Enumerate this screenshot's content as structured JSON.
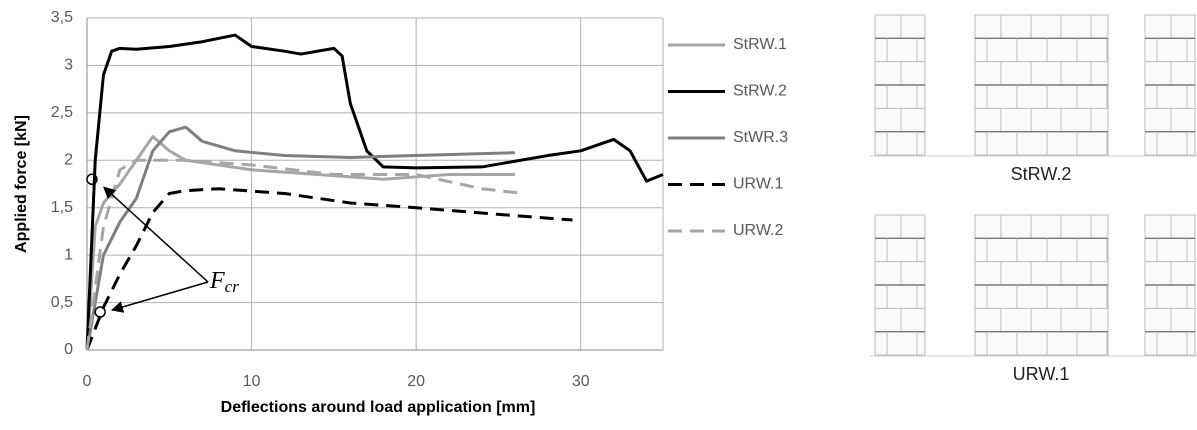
{
  "chart_data": {
    "type": "line",
    "y_label": "Applied force [kN]",
    "x_label": "Deflections around load application [mm]",
    "xlim": [
      0,
      35
    ],
    "xticks": [
      0,
      10,
      20,
      30
    ],
    "ylim": [
      0,
      3.5
    ],
    "yticks": [
      0,
      {
        "value": 0.5,
        "label": "0,5"
      },
      1,
      {
        "value": 1.5,
        "label": "1,5"
      },
      2,
      {
        "value": 2.5,
        "label": "2,5"
      },
      3,
      {
        "value": 3.5,
        "label": "3,5"
      }
    ],
    "grid": true,
    "legend": "right",
    "series": [
      {
        "name": "StRW.1",
        "color": "#a6a6a6",
        "dashed": false,
        "x": [
          0,
          0.5,
          1,
          2,
          3,
          4,
          5,
          6,
          8,
          10,
          14,
          18,
          22,
          26
        ],
        "values": [
          0,
          1.3,
          1.55,
          1.75,
          2.0,
          2.25,
          2.1,
          2.0,
          1.95,
          1.9,
          1.85,
          1.8,
          1.85,
          1.85
        ]
      },
      {
        "name": "StRW.2",
        "color": "#000000",
        "dashed": false,
        "x": [
          0,
          0.5,
          1,
          1.5,
          2,
          3,
          5,
          7,
          9,
          10,
          12,
          13,
          15,
          15.5,
          16,
          17,
          18,
          20,
          24,
          28,
          30,
          32,
          33,
          34,
          35
        ],
        "values": [
          0,
          2.0,
          2.9,
          3.15,
          3.18,
          3.17,
          3.2,
          3.25,
          3.32,
          3.2,
          3.15,
          3.12,
          3.18,
          3.1,
          2.6,
          2.1,
          1.93,
          1.92,
          1.93,
          2.05,
          2.1,
          2.22,
          2.1,
          1.78,
          1.85
        ]
      },
      {
        "name": "StWR.3",
        "color": "#7f7f7f",
        "dashed": false,
        "x": [
          0,
          1,
          2,
          3,
          4,
          5,
          6,
          7,
          9,
          12,
          16,
          20,
          24,
          26
        ],
        "values": [
          0,
          1.0,
          1.35,
          1.6,
          2.1,
          2.3,
          2.35,
          2.2,
          2.1,
          2.05,
          2.03,
          2.05,
          2.07,
          2.08
        ]
      },
      {
        "name": "URW.1",
        "color": "#000000",
        "dashed": true,
        "x": [
          0,
          1,
          2,
          3,
          4,
          5,
          6,
          8,
          12,
          16,
          20,
          25,
          29.5
        ],
        "values": [
          0,
          0.45,
          0.8,
          1.1,
          1.45,
          1.65,
          1.68,
          1.7,
          1.65,
          1.55,
          1.5,
          1.43,
          1.37
        ]
      },
      {
        "name": "URW.2",
        "color": "#a6a6a6",
        "dashed": true,
        "x": [
          0,
          1,
          2,
          3,
          4,
          6,
          10,
          15,
          20,
          24,
          26.5
        ],
        "values": [
          0,
          1.3,
          1.9,
          2.0,
          2.0,
          2.0,
          1.95,
          1.85,
          1.85,
          1.7,
          1.65
        ]
      }
    ],
    "annotation": {
      "text": "F",
      "subscript": "cr",
      "points": [
        {
          "x": 0.3,
          "y": 1.8
        },
        {
          "x": 0.8,
          "y": 0.4
        }
      ]
    }
  },
  "figures": [
    {
      "label": "StRW.2"
    },
    {
      "label": "URW.1"
    }
  ]
}
